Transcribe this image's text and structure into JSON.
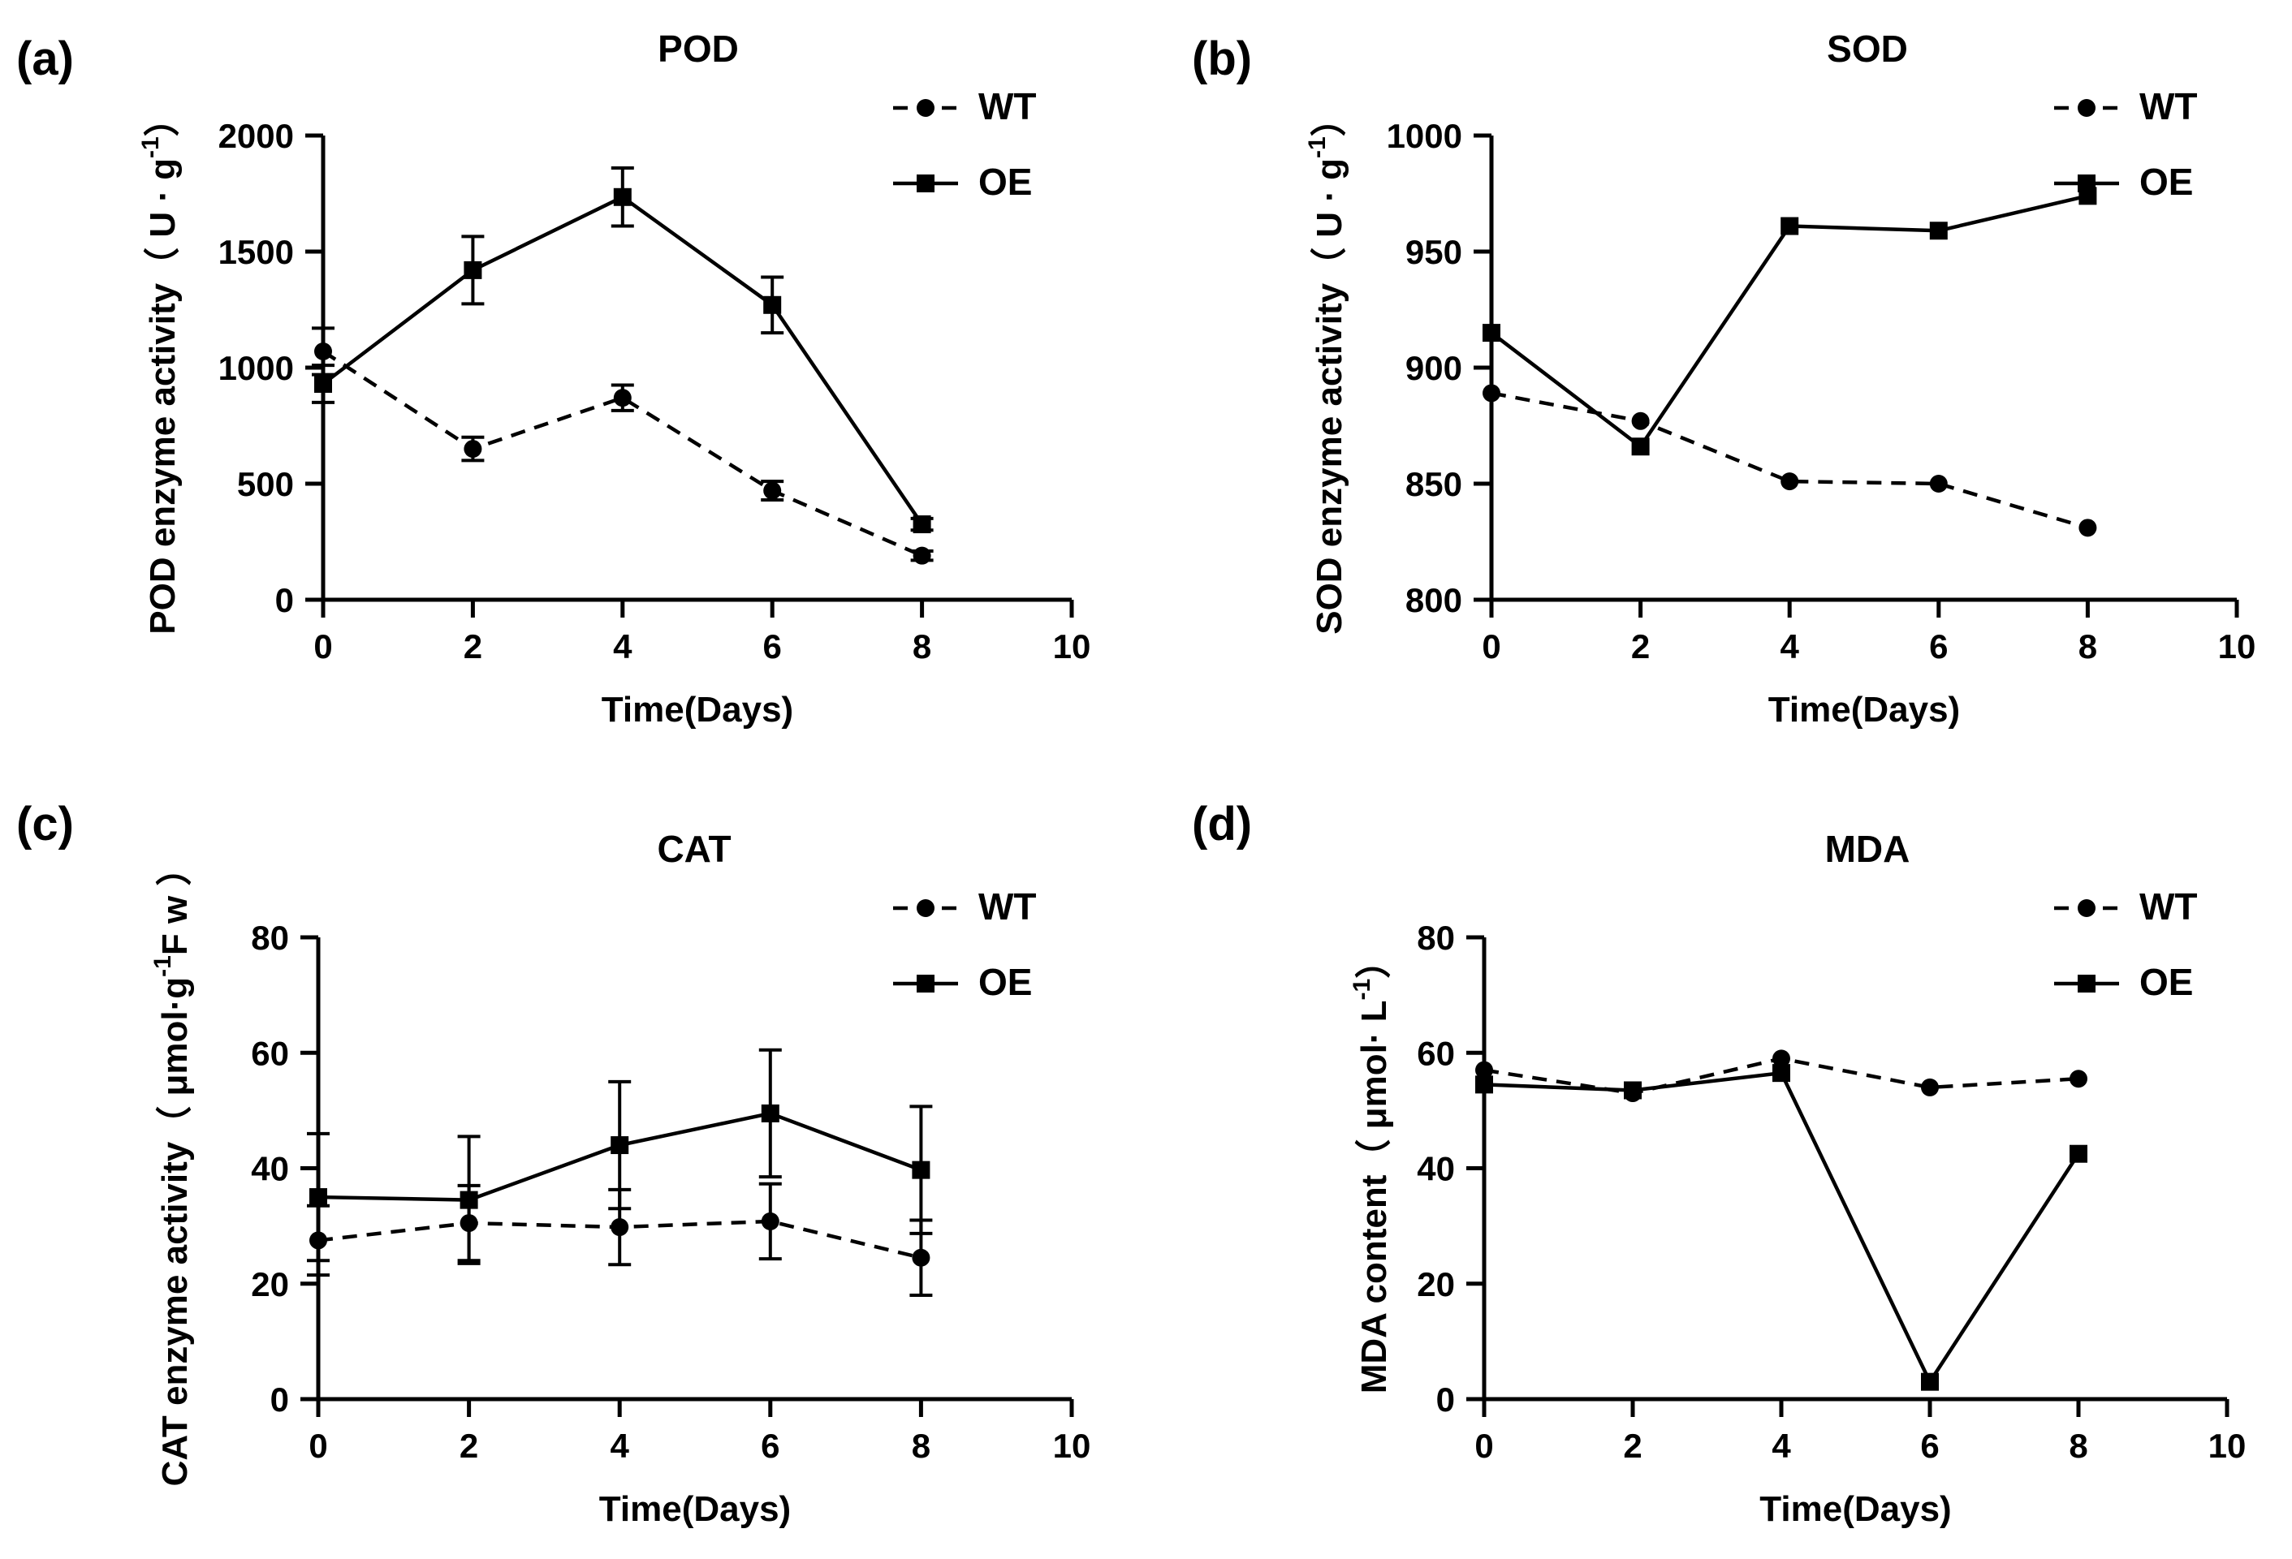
{
  "chart_data": [
    {
      "type": "line",
      "panel_label": "(a)",
      "title": "POD",
      "xlabel": "Time(Days)",
      "ylabel": "POD enzyme activity（ U · g",
      "ylabel_sup": "-1",
      "ylabel_suffix": "）",
      "xlim": [
        0,
        10
      ],
      "ylim": [
        0,
        2000
      ],
      "xticks": [
        0,
        2,
        4,
        6,
        8,
        10
      ],
      "yticks": [
        0,
        500,
        1000,
        1500,
        2000
      ],
      "x": [
        0,
        2,
        4,
        6,
        8
      ],
      "series": [
        {
          "name": "WT",
          "values": [
            1070,
            650,
            870,
            470,
            190
          ],
          "errors": [
            100,
            50,
            55,
            40,
            20
          ]
        },
        {
          "name": "OE",
          "values": [
            930,
            1420,
            1735,
            1270,
            325
          ],
          "errors": [
            80,
            145,
            125,
            120,
            25
          ]
        }
      ]
    },
    {
      "type": "line",
      "panel_label": "(b)",
      "title": "SOD",
      "xlabel": "Time(Days)",
      "ylabel": "SOD enzyme activity（ U · g",
      "ylabel_sup": "-1",
      "ylabel_suffix": "）",
      "xlim": [
        0,
        10
      ],
      "ylim": [
        800,
        1000
      ],
      "xticks": [
        0,
        2,
        4,
        6,
        8,
        10
      ],
      "yticks": [
        800,
        850,
        900,
        950,
        1000
      ],
      "x": [
        0,
        2,
        4,
        6,
        8
      ],
      "series": [
        {
          "name": "WT",
          "values": [
            889,
            877,
            851,
            850,
            831
          ],
          "errors": [
            0,
            0,
            0,
            0,
            0
          ]
        },
        {
          "name": "OE",
          "values": [
            915,
            866,
            961,
            959,
            974
          ],
          "errors": [
            0,
            0,
            0,
            0,
            0
          ]
        }
      ]
    },
    {
      "type": "line",
      "panel_label": "(c)",
      "title": "CAT",
      "xlabel": "Time(Days)",
      "ylabel": "CAT enzyme activity（ μmol·g",
      "ylabel_sup": "-1",
      "ylabel_suffix": "F w ）",
      "xlim": [
        0,
        10
      ],
      "ylim": [
        0,
        80
      ],
      "xticks": [
        0,
        2,
        4,
        6,
        8,
        10
      ],
      "yticks": [
        0,
        20,
        40,
        60,
        80
      ],
      "x": [
        0,
        2,
        4,
        6,
        8
      ],
      "series": [
        {
          "name": "WT",
          "values": [
            27.5,
            30.5,
            29.8,
            30.8,
            24.5
          ],
          "errors": [
            6,
            6.5,
            6.5,
            6.5,
            6.5
          ]
        },
        {
          "name": "OE",
          "values": [
            35.0,
            34.5,
            44.0,
            49.5,
            39.7
          ],
          "errors": [
            11,
            11,
            11,
            11,
            11
          ]
        }
      ]
    },
    {
      "type": "line",
      "panel_label": "(d)",
      "title": "MDA",
      "xlabel": "Time(Days)",
      "ylabel": "MDA content（ μmol· L",
      "ylabel_sup": "-1",
      "ylabel_suffix": "）",
      "xlim": [
        0,
        10
      ],
      "ylim": [
        0,
        80
      ],
      "xticks": [
        0,
        2,
        4,
        6,
        8,
        10
      ],
      "yticks": [
        0,
        20,
        40,
        60,
        80
      ],
      "x": [
        0,
        2,
        4,
        6,
        8
      ],
      "series": [
        {
          "name": "WT",
          "values": [
            57,
            53,
            59,
            54,
            55.5
          ],
          "errors": [
            0,
            0,
            0,
            0,
            0
          ]
        },
        {
          "name": "OE",
          "values": [
            54.5,
            53.5,
            56.5,
            3,
            42.5
          ],
          "errors": [
            0,
            0,
            0,
            0,
            0
          ]
        }
      ]
    }
  ]
}
